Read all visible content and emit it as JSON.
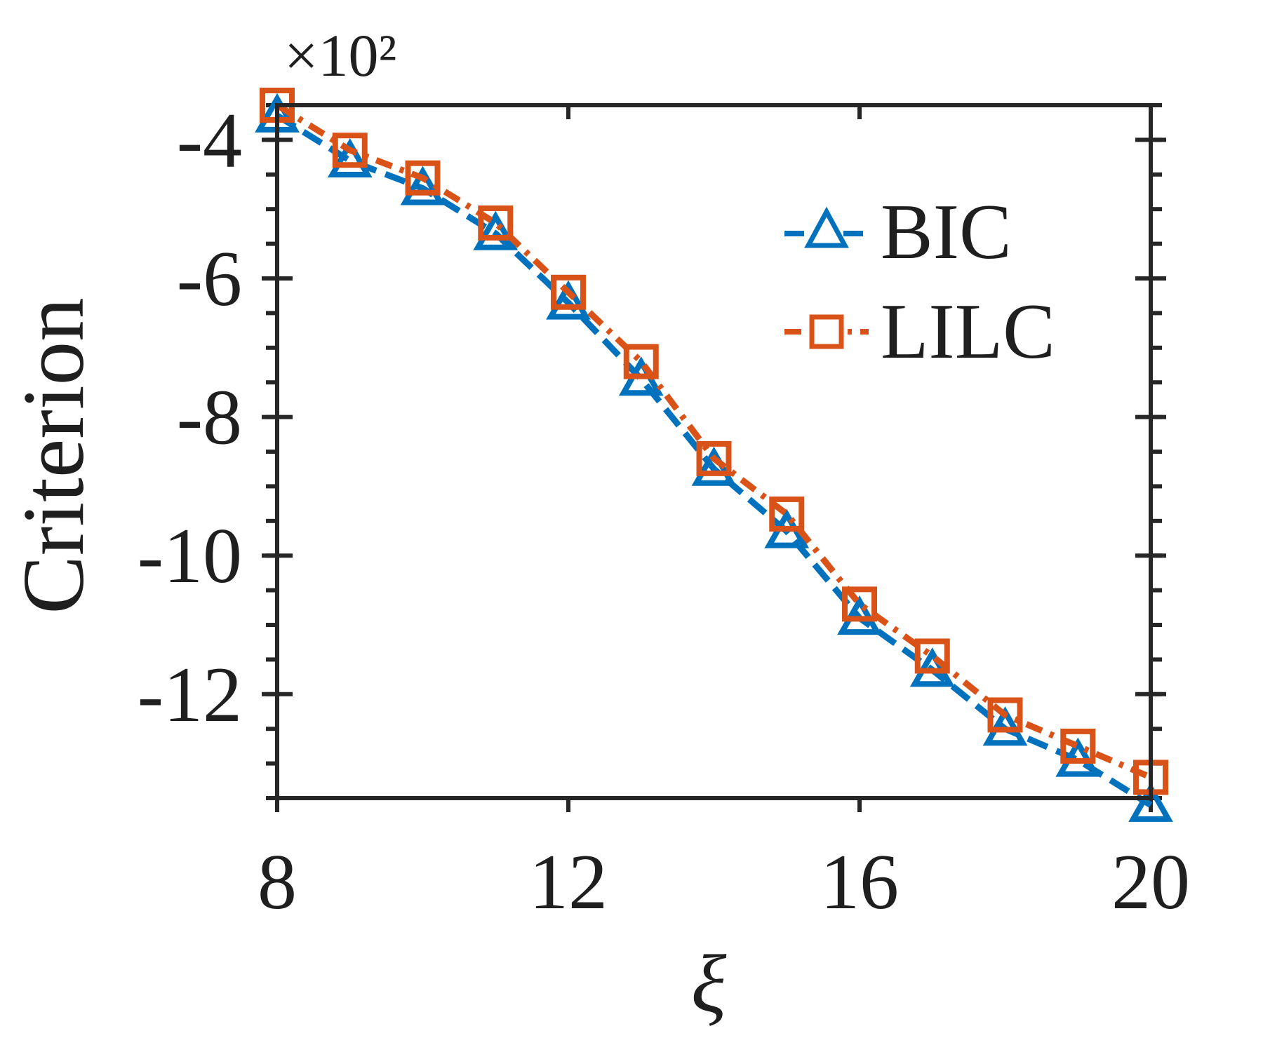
{
  "chart_data": {
    "type": "line",
    "xlabel": "ξ",
    "ylabel": "Criterion",
    "y_multiplier_label": "×10²",
    "x": [
      8,
      9,
      10,
      11,
      12,
      13,
      14,
      15,
      16,
      17,
      18,
      19,
      20
    ],
    "xlim": [
      8,
      20
    ],
    "ylim": [
      -13.5,
      -3.5
    ],
    "x_ticks": [
      8,
      12,
      16,
      20
    ],
    "x_tick_labels": [
      "8",
      "12",
      "16",
      "20"
    ],
    "y_ticks": [
      -4,
      -6,
      -8,
      -10,
      -12
    ],
    "y_tick_labels": [
      "-4",
      "-6",
      "-8",
      "-10",
      "-12"
    ],
    "grid": false,
    "legend_position": "top-right",
    "series": [
      {
        "name": "BIC",
        "marker": "triangle",
        "color": "#0072BD",
        "values": [
          -3.65,
          -4.3,
          -4.7,
          -5.35,
          -6.35,
          -7.45,
          -8.75,
          -9.65,
          -10.9,
          -11.65,
          -12.5,
          -12.95,
          -13.6
        ]
      },
      {
        "name": "LILC",
        "marker": "square",
        "color": "#D95319",
        "values": [
          -3.5,
          -4.15,
          -4.55,
          -5.2,
          -6.2,
          -7.2,
          -8.6,
          -9.4,
          -10.7,
          -11.45,
          -12.3,
          -12.75,
          -13.2
        ]
      }
    ]
  }
}
